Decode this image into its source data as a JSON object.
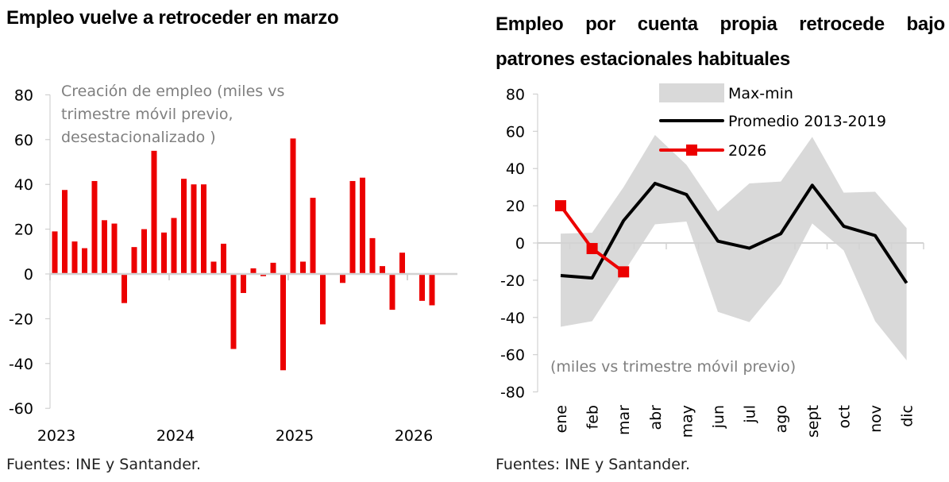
{
  "left_panel": {
    "title": "Empleo vuelve a retroceder en marzo",
    "source": "Fuentes: INE y Santander."
  },
  "right_panel": {
    "title": "Empleo por cuenta propia retrocede bajo patrones estacionales habituales",
    "source": "Fuentes: INE y Santander."
  },
  "chart_data": [
    {
      "type": "bar",
      "title": "Empleo vuelve a retroceder en marzo",
      "annotation": [
        "Creación de empleo (miles vs",
        "trimestre móvil previo,",
        "desestacionalizado )"
      ],
      "xlabel": "",
      "ylabel": "",
      "ylim": [
        -60,
        80
      ],
      "yticks": [
        80,
        60,
        40,
        20,
        0,
        -20,
        -40,
        -60
      ],
      "xtick_labels": [
        "2023",
        "2024",
        "2025",
        "2026"
      ],
      "grid": false,
      "color": "#ec0000",
      "categories": [
        "2023-01",
        "2023-02",
        "2023-03",
        "2023-04",
        "2023-05",
        "2023-06",
        "2023-07",
        "2023-08",
        "2023-09",
        "2023-10",
        "2023-11",
        "2023-12",
        "2024-01",
        "2024-02",
        "2024-03",
        "2024-04",
        "2024-05",
        "2024-06",
        "2024-07",
        "2024-08",
        "2024-09",
        "2024-10",
        "2024-11",
        "2024-12",
        "2025-01",
        "2025-02",
        "2025-03",
        "2025-04",
        "2025-05",
        "2025-06",
        "2025-07",
        "2025-08",
        "2025-09",
        "2025-10",
        "2025-11",
        "2025-12",
        "2026-01",
        "2026-02",
        "2026-03"
      ],
      "values": [
        19,
        37.5,
        14.5,
        11.5,
        41.5,
        24,
        22.5,
        -13,
        12,
        20,
        55,
        18.5,
        25,
        42.5,
        40,
        40,
        5.5,
        13.5,
        -33.5,
        -8.5,
        2.5,
        -1,
        5,
        -43,
        60.5,
        5.5,
        34,
        -22.5,
        -0.2,
        -4,
        41.5,
        43,
        16,
        3.5,
        -16,
        9.5,
        0.3,
        -12,
        -14
      ]
    },
    {
      "type": "line",
      "title": "Empleo por cuenta propia retrocede bajo patrones estacionales habituales",
      "annotation": "(miles vs trimestre móvil previo)",
      "xlabel": "",
      "ylabel": "",
      "ylim": [
        -80,
        80
      ],
      "yticks": [
        80,
        60,
        40,
        20,
        0,
        -20,
        -40,
        -60,
        -80
      ],
      "categories": [
        "ene",
        "feb",
        "mar",
        "abr",
        "may",
        "jun",
        "jul",
        "ago",
        "sept",
        "oct",
        "nov",
        "dic"
      ],
      "grid": false,
      "legend_position": "top-right",
      "series": [
        {
          "name": "Max-min",
          "kind": "band",
          "color": "#d9d9d9",
          "max": [
            5,
            5.5,
            30,
            58,
            42,
            17,
            32,
            33,
            57,
            27,
            27.5,
            8
          ],
          "min": [
            -45,
            -42,
            -16,
            10,
            11.5,
            -37,
            -42.5,
            -22,
            10.5,
            -4,
            -42,
            -63
          ]
        },
        {
          "name": "Promedio 2013-2019",
          "kind": "line",
          "color": "#000000",
          "values": [
            -17.5,
            -18.8,
            12,
            32,
            26,
            1,
            -2.8,
            5,
            31,
            9,
            4,
            -21.5
          ]
        },
        {
          "name": "2026",
          "kind": "line-marker",
          "color": "#ec0000",
          "values": [
            20,
            -3,
            -15.5
          ]
        }
      ]
    }
  ]
}
